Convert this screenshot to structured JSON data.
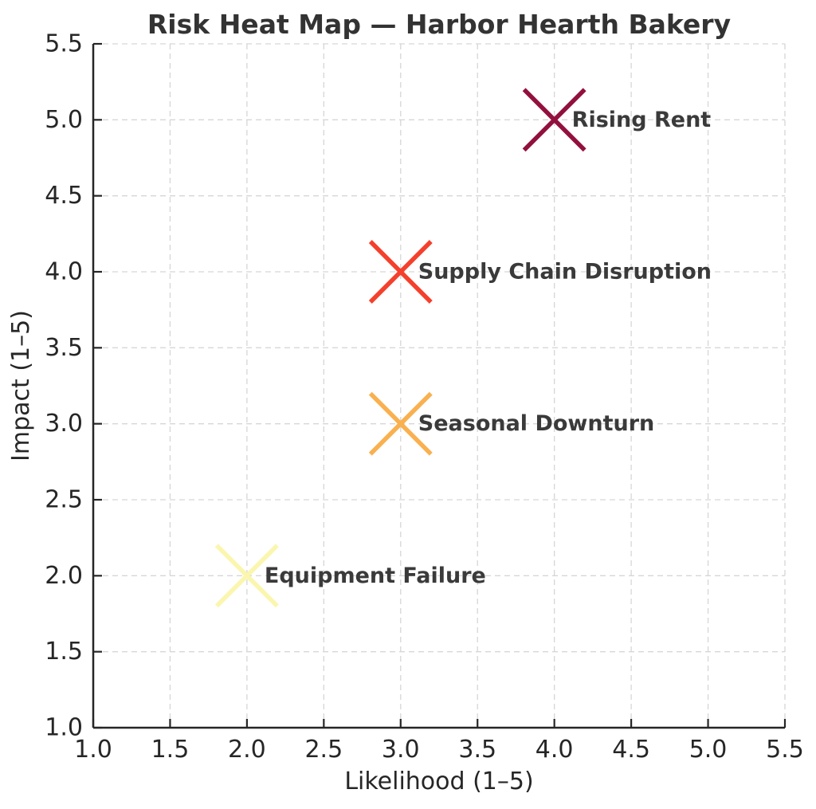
{
  "figure": {
    "background": "#ffffff",
    "text_color": "#262626",
    "grid_color": "#d6d6d6",
    "spine_color": "#262626",
    "title_color": "#333333",
    "point_label_color": "#3a3a3a"
  },
  "chart_data": {
    "type": "scatter",
    "title": "Risk Heat Map — Harbor Hearth Bakery",
    "xlabel": "Likelihood (1–5)",
    "ylabel": "Impact (1–5)",
    "xlim": [
      1.0,
      5.5
    ],
    "ylim": [
      1.0,
      5.5
    ],
    "xticks": [
      1.0,
      1.5,
      2.0,
      2.5,
      3.0,
      3.5,
      4.0,
      4.5,
      5.0,
      5.5
    ],
    "yticks": [
      1.0,
      1.5,
      2.0,
      2.5,
      3.0,
      3.5,
      4.0,
      4.5,
      5.0,
      5.5
    ],
    "xtick_labels": [
      "1.0",
      "1.5",
      "2.0",
      "2.5",
      "3.0",
      "3.5",
      "4.0",
      "4.5",
      "5.0",
      "5.5"
    ],
    "ytick_labels": [
      "1.0",
      "1.5",
      "2.0",
      "2.5",
      "3.0",
      "3.5",
      "4.0",
      "4.5",
      "5.0",
      "5.5"
    ],
    "grid": true,
    "grid_style": "dashed",
    "legend_position": "none",
    "marker": "x",
    "points": [
      {
        "label": "Rising Rent",
        "x": 4,
        "y": 5,
        "color": "#92103E"
      },
      {
        "label": "Supply Chain Disruption",
        "x": 3,
        "y": 4,
        "color": "#F4402C"
      },
      {
        "label": "Seasonal Downturn",
        "x": 3,
        "y": 3,
        "color": "#F9B04F"
      },
      {
        "label": "Equipment Failure",
        "x": 2,
        "y": 2,
        "color": "#FBF6AE"
      }
    ]
  }
}
